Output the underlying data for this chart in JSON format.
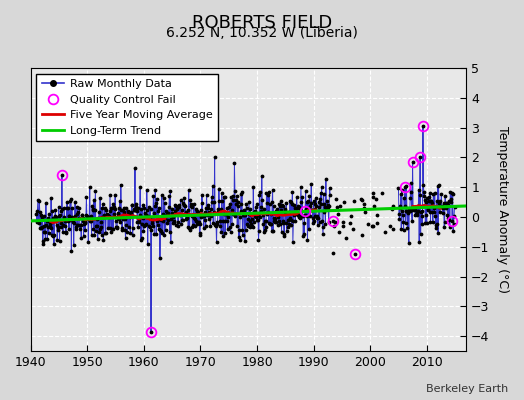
{
  "title": "ROBERTS FIELD",
  "subtitle": "6.252 N, 10.352 W (Liberia)",
  "ylabel": "Temperature Anomaly (°C)",
  "attribution": "Berkeley Earth",
  "xlim": [
    1940,
    2017
  ],
  "ylim": [
    -4.5,
    5
  ],
  "yticks": [
    -4,
    -3,
    -2,
    -1,
    0,
    1,
    2,
    3,
    4,
    5
  ],
  "xticks": [
    1940,
    1950,
    1960,
    1970,
    1980,
    1990,
    2000,
    2010
  ],
  "bg_color": "#e8e8e8",
  "fig_bg_color": "#d8d8d8",
  "grid_color": "white",
  "raw_line_color": "#3333cc",
  "raw_dot_color": "#000000",
  "moving_avg_color": "#dd0000",
  "trend_color": "#00cc00",
  "qc_fail_color": "#ff00ff",
  "title_fontsize": 13,
  "subtitle_fontsize": 10,
  "ylabel_fontsize": 9,
  "legend_fontsize": 8,
  "seed": 42,
  "trend_slope": 0.0065,
  "trend_intercept": -0.13
}
